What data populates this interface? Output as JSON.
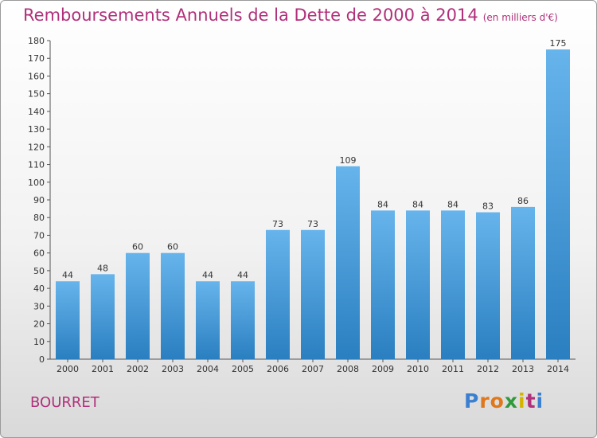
{
  "title": "Remboursements Annuels de la Dette de 2000 à 2014",
  "unit": "(en milliers d'€)",
  "town": "BOURRET",
  "logo": {
    "letters": [
      "P",
      "r",
      "o",
      "x",
      "i",
      "t",
      "i"
    ],
    "colors": [
      "#3a7fd0",
      "#e0771a",
      "#e0771a",
      "#2f9a3a",
      "#d4b400",
      "#b0307a",
      "#3a7fd0"
    ]
  },
  "colors": {
    "accent": "#b0307a",
    "bar_light": "#67b4ec",
    "bar_dark": "#2a7fc0",
    "axis": "#555555"
  },
  "chart_data": {
    "type": "bar",
    "title": "Remboursements Annuels de la Dette de 2000 à 2014",
    "xlabel": "",
    "ylabel": "",
    "categories": [
      "2000",
      "2001",
      "2002",
      "2003",
      "2004",
      "2005",
      "2006",
      "2007",
      "2008",
      "2009",
      "2010",
      "2011",
      "2012",
      "2013",
      "2014"
    ],
    "values": [
      44,
      48,
      60,
      60,
      44,
      44,
      73,
      73,
      109,
      84,
      84,
      84,
      83,
      86,
      175
    ],
    "ylim": [
      0,
      180
    ],
    "yticks": [
      0,
      10,
      20,
      30,
      40,
      50,
      60,
      70,
      80,
      90,
      100,
      110,
      120,
      130,
      140,
      150,
      160,
      170,
      180
    ],
    "grid": false
  }
}
